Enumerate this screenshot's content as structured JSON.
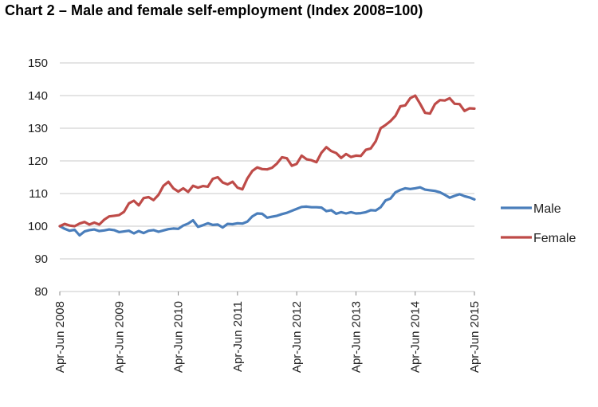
{
  "title": "Chart 2 – Male and female self-employment (Index 2008=100)",
  "colors": {
    "male": "#4a7ebb",
    "female": "#be4b48"
  },
  "chart_data": {
    "type": "line",
    "title": "Chart 2 – Male and female self-employment (Index 2008=100)",
    "xlabel": "",
    "ylabel": "",
    "ylim": [
      80,
      150
    ],
    "yticks": [
      80,
      90,
      100,
      110,
      120,
      130,
      140,
      150
    ],
    "grid": true,
    "legend": "right",
    "x_tick_labels": [
      "Apr-Jun 2008",
      "Apr-Jun 2009",
      "Apr-Jun 2010",
      "Apr-Jun 2011",
      "Apr-Jun 2012",
      "Apr-Jun 2013",
      "Apr-Jun 2014",
      "Apr-Jun 2015"
    ],
    "x_range": [
      0,
      84
    ],
    "series": [
      {
        "name": "Male",
        "color": "#4a7ebb",
        "x": [
          0,
          1,
          2,
          3,
          4,
          5,
          6,
          7,
          8,
          9,
          10,
          11,
          12,
          13,
          14,
          15,
          16,
          17,
          18,
          19,
          20,
          21,
          22,
          23,
          24,
          25,
          26,
          27,
          28,
          29,
          30,
          31,
          32,
          33,
          34,
          35,
          36,
          37,
          38,
          39,
          40,
          41,
          42,
          43,
          44,
          45,
          46,
          47,
          48,
          49,
          50,
          51,
          52,
          53,
          54,
          55,
          56,
          57,
          58,
          59,
          60,
          61,
          62,
          63,
          64,
          65,
          66,
          67,
          68,
          69,
          70,
          71,
          72,
          73,
          74,
          75,
          76,
          77,
          78,
          79,
          80,
          81,
          82,
          83,
          84
        ],
        "values": [
          100,
          99.2,
          98.6,
          98.9,
          97.2,
          98.4,
          98.8,
          99,
          98.5,
          98.7,
          99,
          98.8,
          98.2,
          98.4,
          98.6,
          97.8,
          98.5,
          97.9,
          98.6,
          98.8,
          98.3,
          98.7,
          99.1,
          99.3,
          99.2,
          100.2,
          100.8,
          101.8,
          99.8,
          100.3,
          100.9,
          100.4,
          100.5,
          99.6,
          100.7,
          100.6,
          100.9,
          100.8,
          101.4,
          103,
          103.9,
          103.8,
          102.6,
          102.9,
          103.2,
          103.7,
          104.1,
          104.7,
          105.3,
          105.9,
          106,
          105.8,
          105.8,
          105.7,
          104.6,
          104.9,
          103.8,
          104.3,
          103.9,
          104.3,
          103.9,
          104,
          104.3,
          104.9,
          104.8,
          105.8,
          107.9,
          108.5,
          110.4,
          111.1,
          111.6,
          111.4,
          111.6,
          111.9,
          111.2,
          111,
          110.8,
          110.4,
          109.6,
          108.7,
          109.3,
          109.8,
          109.2,
          108.8,
          108.2
        ]
      },
      {
        "name": "Female",
        "color": "#be4b48",
        "x": [
          0,
          1,
          2,
          3,
          4,
          5,
          6,
          7,
          8,
          9,
          10,
          11,
          12,
          13,
          14,
          15,
          16,
          17,
          18,
          19,
          20,
          21,
          22,
          23,
          24,
          25,
          26,
          27,
          28,
          29,
          30,
          31,
          32,
          33,
          34,
          35,
          36,
          37,
          38,
          39,
          40,
          41,
          42,
          43,
          44,
          45,
          46,
          47,
          48,
          49,
          50,
          51,
          52,
          53,
          54,
          55,
          56,
          57,
          58,
          59,
          60,
          61,
          62,
          63,
          64,
          65,
          66,
          67,
          68,
          69,
          70,
          71,
          72,
          73,
          74,
          75,
          76,
          77,
          78,
          79,
          80,
          81,
          82,
          83,
          84
        ],
        "values": [
          100,
          100.7,
          100.2,
          100,
          100.8,
          101.3,
          100.5,
          101.1,
          100.5,
          102,
          103,
          103.2,
          103.4,
          104.4,
          107,
          107.8,
          106.4,
          108.6,
          108.9,
          108,
          109.6,
          112.4,
          113.6,
          111.6,
          110.6,
          111.6,
          110.5,
          112.4,
          111.8,
          112.3,
          112.1,
          114.5,
          115,
          113.4,
          112.8,
          113.6,
          111.8,
          111.3,
          114.6,
          116.9,
          118,
          117.5,
          117.4,
          117.9,
          119.2,
          121.1,
          120.8,
          118.5,
          119.1,
          121.6,
          120.5,
          120.2,
          119.6,
          122.5,
          124.2,
          123,
          122.4,
          120.9,
          122.1,
          121.2,
          121.6,
          121.5,
          123.4,
          123.8,
          126,
          130,
          131,
          132.2,
          133.8,
          136.7,
          137,
          139.2,
          140,
          137.5,
          134.7,
          134.5,
          137.4,
          138.6,
          138.5,
          139.2,
          137.5,
          137.4,
          135.3,
          136.1,
          136
        ]
      }
    ]
  }
}
